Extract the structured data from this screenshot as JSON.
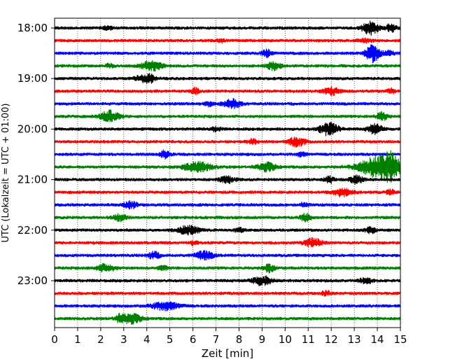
{
  "chart_data": {
    "type": "line",
    "xlabel": "Zeit  [min]",
    "ylabel": "UTC (Lokalzeit = UTC + 01:00)",
    "xlim": [
      0,
      15
    ],
    "x_ticks": [
      "0",
      "1",
      "2",
      "3",
      "4",
      "5",
      "6",
      "7",
      "8",
      "9",
      "10",
      "11",
      "12",
      "13",
      "14",
      "15"
    ],
    "y_ticks": [
      "18:00",
      "19:00",
      "20:00",
      "21:00",
      "22:00",
      "23:00"
    ],
    "grid": "vertical dotted",
    "colors": [
      "#000000",
      "#ff0000",
      "#0000ff",
      "#008000"
    ],
    "traces": [
      {
        "start": "18:00",
        "color": "#000000",
        "events": [
          [
            13.7,
            1.6,
            0.35
          ],
          [
            14.6,
            1.2,
            0.2
          ],
          [
            2.3,
            0.5,
            0.2
          ]
        ]
      },
      {
        "start": "18:15",
        "color": "#ff0000",
        "events": [
          [
            7.2,
            0.4,
            0.2
          ],
          [
            13.5,
            0.4,
            0.3
          ]
        ]
      },
      {
        "start": "18:30",
        "color": "#0000ff",
        "events": [
          [
            9.2,
            0.9,
            0.2
          ],
          [
            13.8,
            2.2,
            0.3
          ],
          [
            14.5,
            0.7,
            0.2
          ]
        ]
      },
      {
        "start": "18:45",
        "color": "#008000",
        "events": [
          [
            4.2,
            1.2,
            0.45
          ],
          [
            9.5,
            1.0,
            0.3
          ],
          [
            2.4,
            0.5,
            0.2
          ]
        ]
      },
      {
        "start": "19:00",
        "color": "#000000",
        "events": [
          [
            3.9,
            0.9,
            0.4
          ],
          [
            4.2,
            0.5,
            0.2
          ]
        ]
      },
      {
        "start": "19:15",
        "color": "#ff0000",
        "events": [
          [
            6.1,
            0.8,
            0.15
          ],
          [
            12.0,
            0.9,
            0.35
          ],
          [
            14.6,
            0.6,
            0.15
          ]
        ]
      },
      {
        "start": "19:30",
        "color": "#0000ff",
        "events": [
          [
            7.7,
            1.1,
            0.35
          ],
          [
            6.7,
            0.5,
            0.2
          ]
        ]
      },
      {
        "start": "19:45",
        "color": "#008000",
        "events": [
          [
            2.4,
            1.4,
            0.4
          ],
          [
            14.2,
            1.0,
            0.25
          ]
        ]
      },
      {
        "start": "20:00",
        "color": "#000000",
        "events": [
          [
            11.9,
            1.6,
            0.4
          ],
          [
            13.9,
            1.2,
            0.3
          ],
          [
            7.0,
            0.5,
            0.2
          ]
        ]
      },
      {
        "start": "20:15",
        "color": "#ff0000",
        "events": [
          [
            10.5,
            1.2,
            0.35
          ],
          [
            8.6,
            0.6,
            0.2
          ]
        ]
      },
      {
        "start": "20:30",
        "color": "#0000ff",
        "events": [
          [
            4.8,
            1.0,
            0.2
          ],
          [
            10.7,
            0.5,
            0.2
          ]
        ]
      },
      {
        "start": "20:45",
        "color": "#008000",
        "events": [
          [
            6.2,
            1.2,
            0.6
          ],
          [
            9.2,
            1.1,
            0.4
          ],
          [
            14.2,
            3.0,
            0.9
          ],
          [
            14.6,
            1.8,
            0.2
          ]
        ]
      },
      {
        "start": "21:00",
        "color": "#000000",
        "events": [
          [
            7.5,
            0.8,
            0.35
          ],
          [
            11.9,
            0.9,
            0.2
          ],
          [
            13.1,
            0.9,
            0.3
          ]
        ]
      },
      {
        "start": "21:15",
        "color": "#ff0000",
        "events": [
          [
            12.5,
            1.0,
            0.4
          ],
          [
            14.6,
            0.6,
            0.2
          ]
        ]
      },
      {
        "start": "21:30",
        "color": "#0000ff",
        "events": [
          [
            3.3,
            0.9,
            0.3
          ],
          [
            10.8,
            0.5,
            0.2
          ]
        ]
      },
      {
        "start": "21:45",
        "color": "#008000",
        "events": [
          [
            2.8,
            0.8,
            0.3
          ],
          [
            10.9,
            1.1,
            0.2
          ]
        ]
      },
      {
        "start": "22:00",
        "color": "#000000",
        "events": [
          [
            5.8,
            1.1,
            0.45
          ],
          [
            13.7,
            0.9,
            0.2
          ],
          [
            8.0,
            0.5,
            0.2
          ]
        ]
      },
      {
        "start": "22:15",
        "color": "#ff0000",
        "events": [
          [
            11.2,
            1.0,
            0.4
          ],
          [
            6.0,
            0.5,
            0.2
          ]
        ]
      },
      {
        "start": "22:30",
        "color": "#0000ff",
        "events": [
          [
            4.3,
            0.9,
            0.25
          ],
          [
            6.5,
            1.0,
            0.4
          ]
        ]
      },
      {
        "start": "22:45",
        "color": "#008000",
        "events": [
          [
            2.2,
            0.9,
            0.4
          ],
          [
            9.3,
            1.0,
            0.25
          ],
          [
            4.7,
            0.5,
            0.2
          ]
        ]
      },
      {
        "start": "23:00",
        "color": "#000000",
        "events": [
          [
            9.0,
            1.1,
            0.4
          ],
          [
            13.5,
            0.6,
            0.3
          ]
        ]
      },
      {
        "start": "23:15",
        "color": "#ff0000",
        "events": [
          [
            11.8,
            0.5,
            0.25
          ]
        ]
      },
      {
        "start": "23:30",
        "color": "#0000ff",
        "events": [
          [
            4.8,
            1.0,
            0.6
          ]
        ]
      },
      {
        "start": "23:45",
        "color": "#008000",
        "events": [
          [
            3.3,
            1.3,
            0.45
          ],
          [
            2.8,
            0.6,
            0.2
          ]
        ]
      }
    ]
  }
}
